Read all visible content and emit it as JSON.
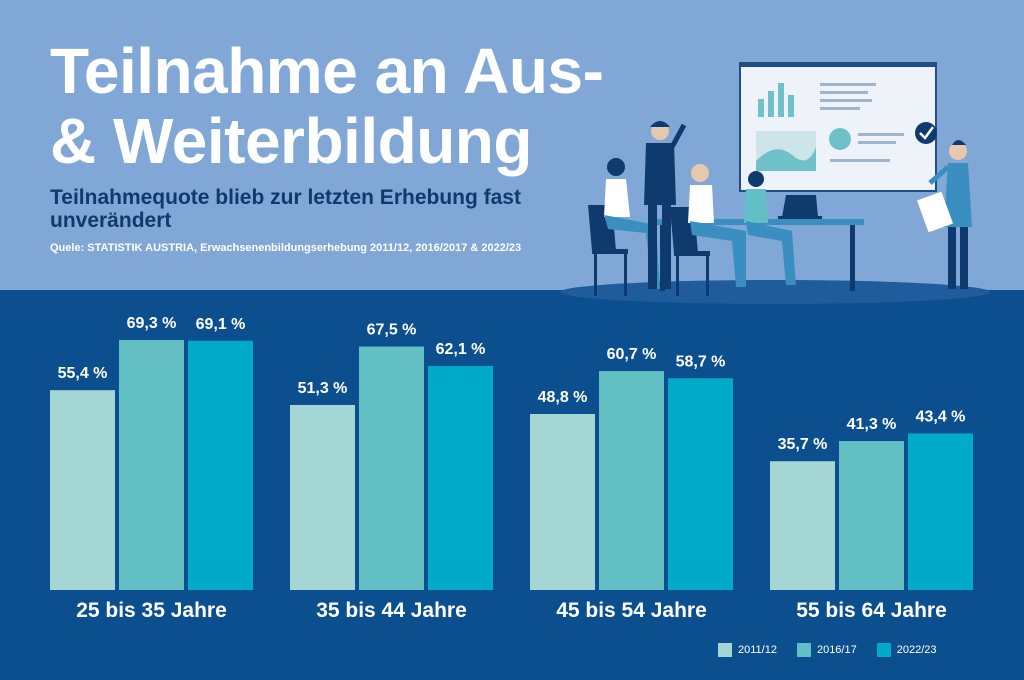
{
  "header": {
    "title": "Teilnahme an Aus-\n& Weiterbildung",
    "subtitle": "Teilnahmequote blieb zur letzten Erhebung fast unverändert",
    "source": "Quele: STATISTIK AUSTRIA, Erwachsenenbildungserhebung 2011/12, 2016/2017 & 2022/23"
  },
  "colors": {
    "series_2011": "#a4d6d6",
    "series_2016": "#62bfc3",
    "series_2022": "#00aac8",
    "background_dark": "#0c4f8f",
    "background_light": "#80a7d5"
  },
  "chart_data": {
    "type": "bar",
    "title": "Teilnahme an Aus- & Weiterbildung",
    "xlabel": "",
    "ylabel": "",
    "ylim": [
      0,
      70
    ],
    "grid": false,
    "legend": "bottom-right",
    "categories": [
      "25 bis 35 Jahre",
      "35 bis 44 Jahre",
      "45 bis 54 Jahre",
      "55 bis 64 Jahre"
    ],
    "series": [
      {
        "name": "2011/12",
        "color": "#a4d6d6",
        "values": [
          55.4,
          51.3,
          48.8,
          35.7
        ],
        "labels": [
          "55,4 %",
          "51,3 %",
          "48,8 %",
          "35,7 %"
        ]
      },
      {
        "name": "2016/17",
        "color": "#62bfc3",
        "values": [
          69.3,
          67.5,
          60.7,
          41.3
        ],
        "labels": [
          "69,3 %",
          "67,5 %",
          "60,7 %",
          "41,3 %"
        ]
      },
      {
        "name": "2022/23",
        "color": "#00aac8",
        "values": [
          69.1,
          62.1,
          58.7,
          43.4
        ],
        "labels": [
          "69,1 %",
          "62,1 %",
          "58,7 %",
          "43,4 %"
        ]
      }
    ]
  },
  "legend": {
    "items": [
      {
        "label": "2011/12",
        "color": "#a4d6d6"
      },
      {
        "label": "2016/17",
        "color": "#62bfc3"
      },
      {
        "label": "2022/23",
        "color": "#00aac8"
      }
    ]
  }
}
